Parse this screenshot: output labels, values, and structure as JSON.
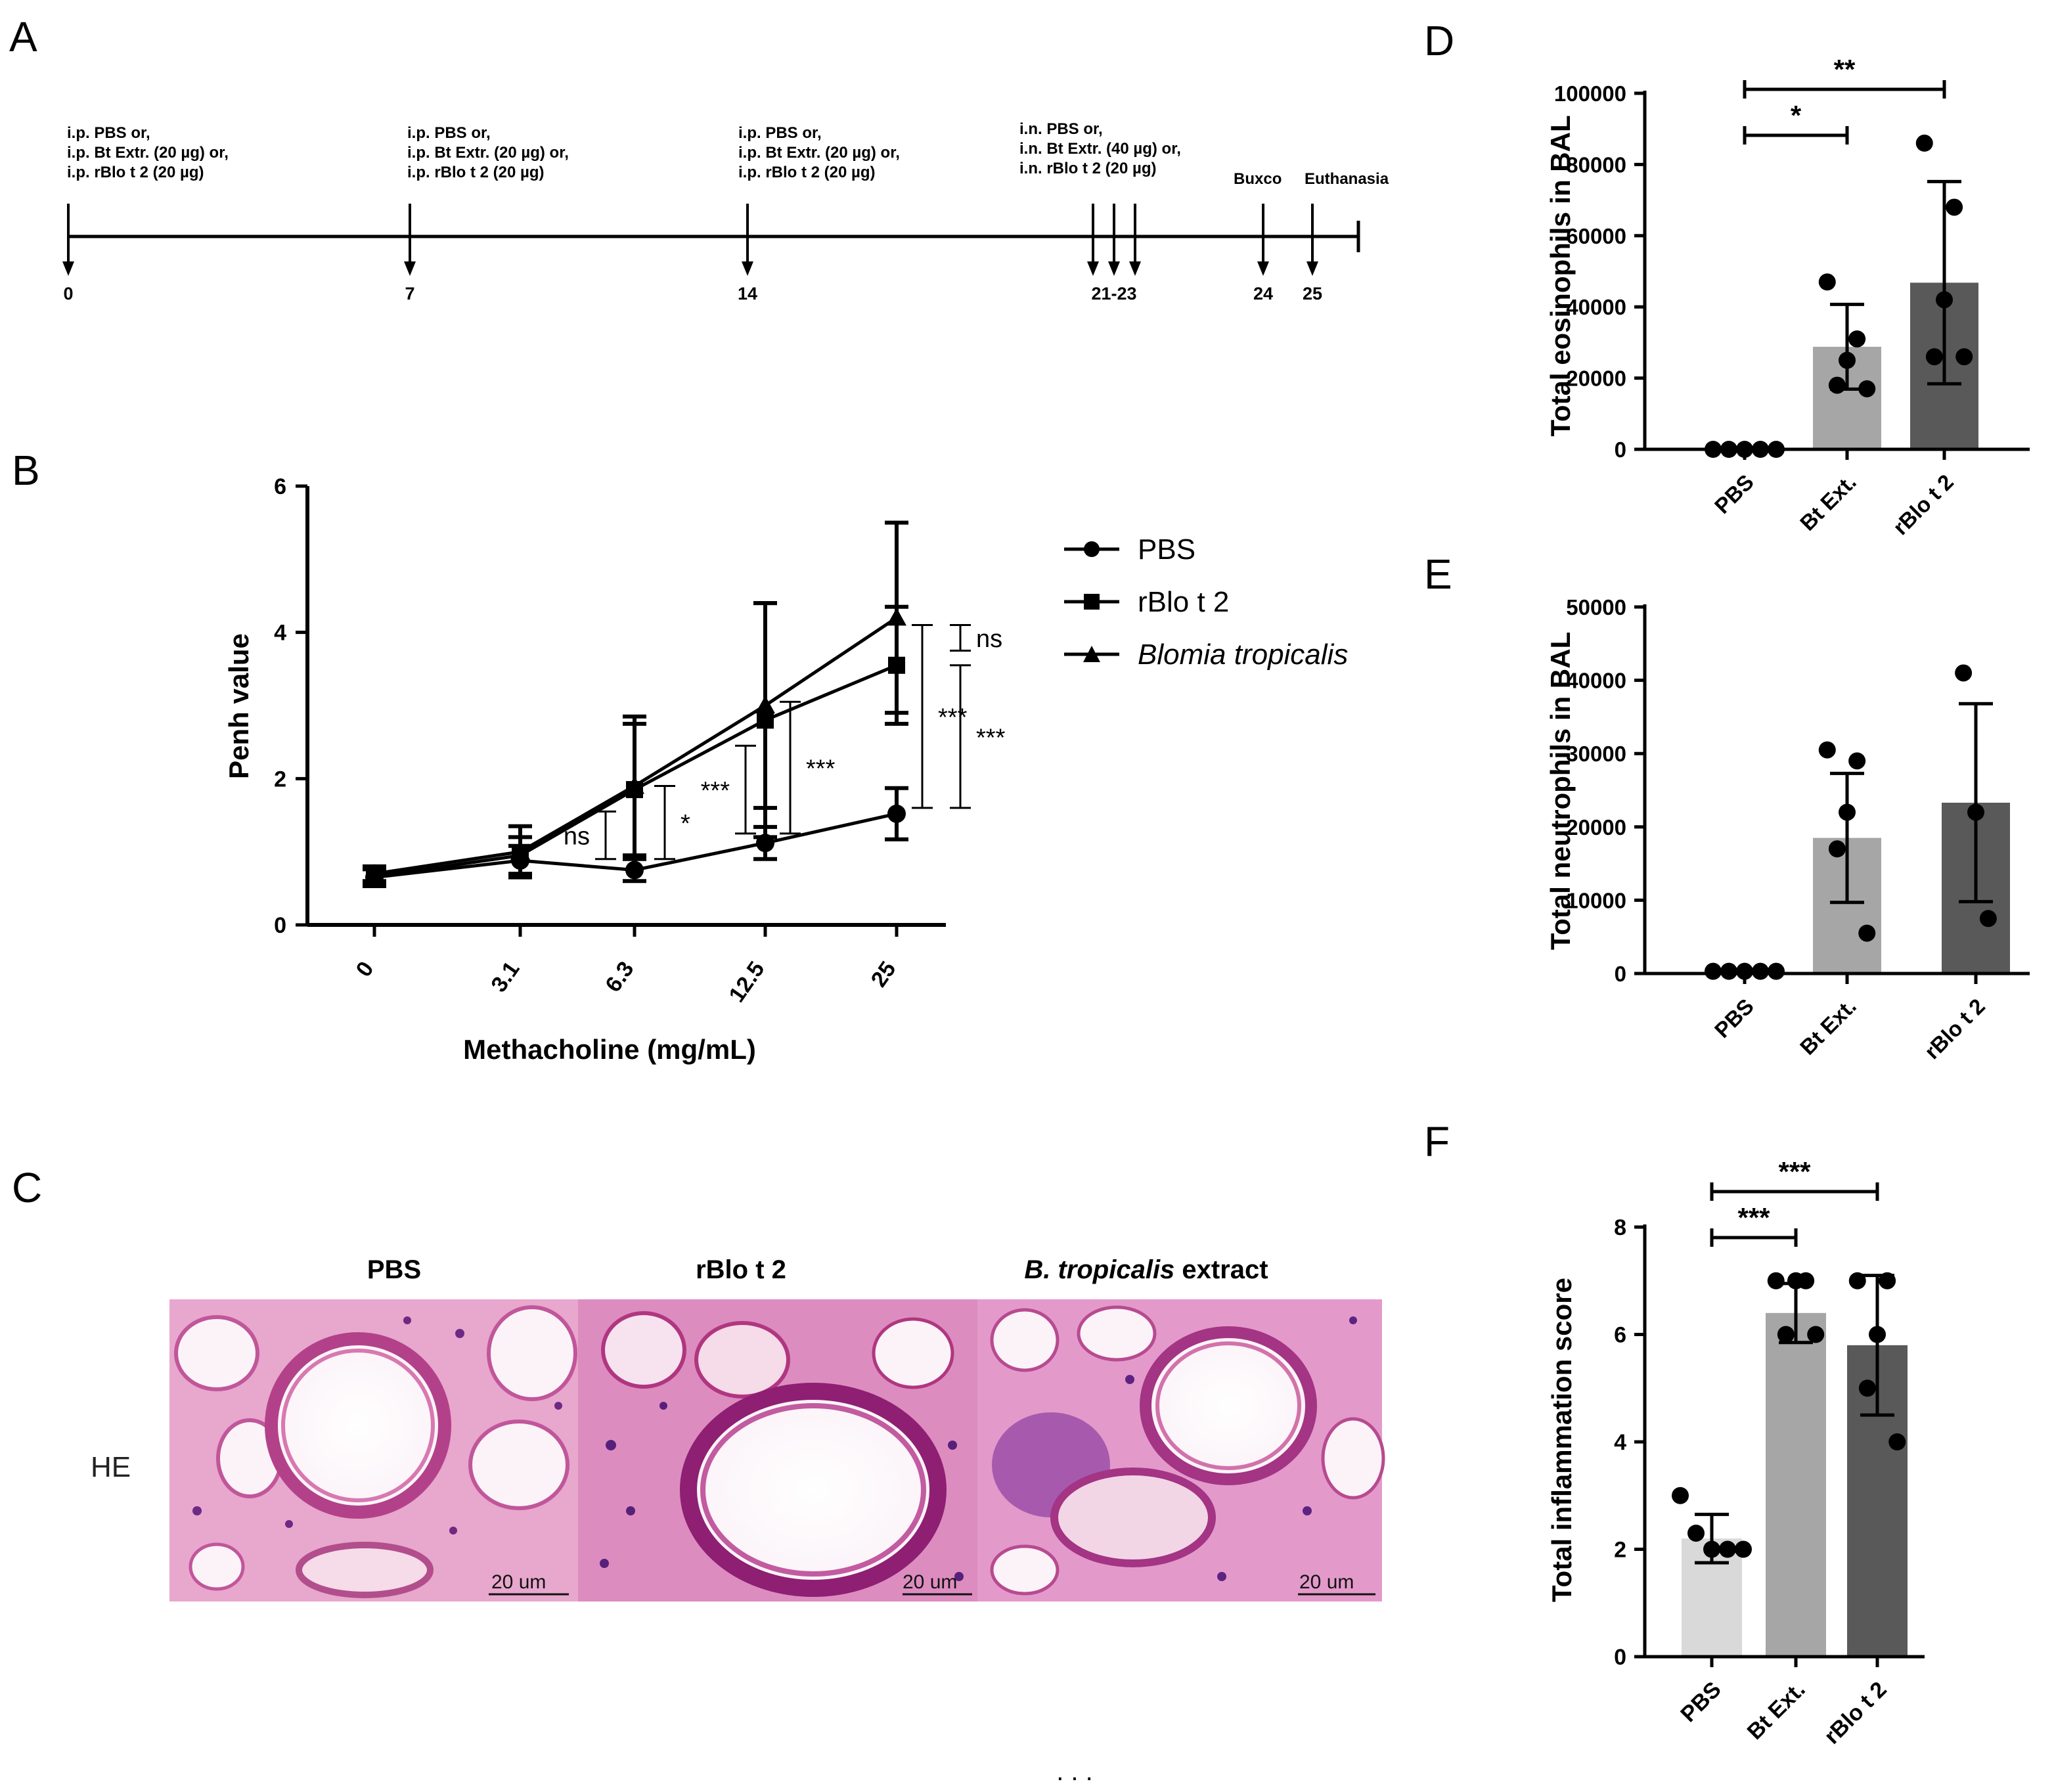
{
  "panel_letters": {
    "a": "A",
    "b": "B",
    "c": "C",
    "d": "D",
    "e": "E",
    "f": "F"
  },
  "colors": {
    "black": "#000000",
    "bar_pbs": "#d9d9d9",
    "bar_bt": "#a6a6a6",
    "bar_rblo": "#595959",
    "histo_pink": "#e6a3c9",
    "histo_purple": "#8a3a8e"
  },
  "timeline": {
    "events": [
      {
        "lines": [
          "i.p. PBS or,",
          "i.p. Bt Extr. (20 µg) or,",
          "i.p. rBlo t 2 (20 µg)"
        ]
      },
      {
        "lines": [
          "i.p. PBS or,",
          "i.p. Bt Extr. (20 µg) or,",
          "i.p. rBlo t 2 (20 µg)"
        ]
      },
      {
        "lines": [
          "i.p. PBS or,",
          "i.p. Bt Extr. (20 µg) or,",
          "i.p. rBlo t 2 (20 µg)"
        ]
      },
      {
        "lines": [
          "i.n. PBS or,",
          "i.n. Bt Extr. (40 µg) or,",
          "i.n. rBlo t 2 (20 µg)"
        ]
      },
      {
        "lines": [
          "Buxco"
        ]
      },
      {
        "lines": [
          "Euthanasia"
        ]
      }
    ],
    "days": [
      "0",
      "7",
      "14",
      "21-23",
      "24",
      "25"
    ]
  },
  "chart_data": [
    {
      "panel": "B",
      "type": "line",
      "xlabel": "Methacholine (mg/mL)",
      "ylabel": "Penh value",
      "categories": [
        "0",
        "3.1",
        "6.3",
        "12.5",
        "25"
      ],
      "ylim": [
        0,
        6
      ],
      "yticks": [
        "0",
        "2",
        "4",
        "6"
      ],
      "series": [
        {
          "name": "PBS",
          "marker": "circle",
          "values": [
            0.65,
            0.88,
            0.75,
            1.12,
            1.52
          ],
          "err": [
            0.12,
            0.2,
            0.15,
            0.22,
            0.35
          ]
        },
        {
          "name": "rBlo t 2",
          "marker": "square",
          "values": [
            0.66,
            0.95,
            1.85,
            2.8,
            3.55
          ],
          "err": [
            0.1,
            0.25,
            0.9,
            1.6,
            0.8
          ]
        },
        {
          "name": "Blomia tropicalis",
          "marker": "triangle",
          "values": [
            0.7,
            1.0,
            1.9,
            3.0,
            4.2
          ],
          "err": [
            0.1,
            0.35,
            0.95,
            1.4,
            1.3
          ]
        }
      ],
      "annotations": [
        {
          "text": "ns",
          "between": [
            "PBS",
            "rBlo t 2"
          ],
          "at": "6.3"
        },
        {
          "text": "*",
          "between": [
            "PBS",
            "Blomia tropicalis"
          ],
          "at": "6.3"
        },
        {
          "text": "***",
          "between": [
            "PBS",
            "rBlo t 2"
          ],
          "at": "12.5"
        },
        {
          "text": "***",
          "between": [
            "PBS",
            "Blomia tropicalis"
          ],
          "at": "12.5"
        },
        {
          "text": "ns",
          "between": [
            "rBlo t 2",
            "Blomia tropicalis"
          ],
          "at": "25"
        },
        {
          "text": "***",
          "between": [
            "PBS",
            "rBlo t 2"
          ],
          "at": "25"
        },
        {
          "text": "***",
          "between": [
            "PBS",
            "Blomia tropicalis"
          ],
          "at": "25"
        }
      ]
    },
    {
      "panel": "D",
      "type": "bar",
      "ylabel": "Total eosinophils in BAL",
      "categories": [
        "PBS",
        "Bt Ext.",
        "rBlo t 2"
      ],
      "values": [
        0,
        28800,
        46800
      ],
      "sd": [
        0,
        11900,
        28400
      ],
      "points": [
        [
          0,
          0,
          0,
          0,
          0
        ],
        [
          47000,
          31000,
          25000,
          18000,
          17000
        ],
        [
          86000,
          68000,
          42000,
          26000,
          26000
        ]
      ],
      "ylim": [
        0,
        100000
      ],
      "yticks": [
        "0",
        "20000",
        "40000",
        "60000",
        "80000",
        "100000"
      ],
      "significance": [
        {
          "from": "PBS",
          "to": "Bt Ext.",
          "text": "*"
        },
        {
          "from": "PBS",
          "to": "rBlo t 2",
          "text": "**"
        }
      ]
    },
    {
      "panel": "E",
      "type": "bar",
      "ylabel": "Total neutrophils in BAL",
      "categories": [
        "PBS",
        "Bt Ext.",
        " rBlo t 2"
      ],
      "values": [
        0,
        18500,
        23300
      ],
      "sd": [
        0,
        8800,
        13500
      ],
      "points": [
        [
          300,
          300,
          300,
          300,
          300
        ],
        [
          30500,
          29000,
          22000,
          17000,
          5500
        ],
        [
          41000,
          22000,
          7500
        ]
      ],
      "ylim": [
        0,
        50000
      ],
      "yticks": [
        "0",
        "10000",
        "20000",
        "30000",
        "40000",
        "50000"
      ],
      "significance": []
    },
    {
      "panel": "F",
      "type": "bar",
      "ylabel": "Total inflammation score",
      "categories": [
        "PBS",
        "Bt Ext.",
        "rBlo t 2"
      ],
      "values": [
        2.2,
        6.4,
        5.8
      ],
      "sd": [
        0.45,
        0.55,
        1.3
      ],
      "points": [
        [
          3,
          2.3,
          2,
          2,
          2
        ],
        [
          7,
          7,
          7,
          6,
          6
        ],
        [
          7,
          7,
          6,
          5,
          4
        ]
      ],
      "ylim": [
        0,
        8
      ],
      "yticks": [
        "0",
        "2",
        "4",
        "6",
        "8"
      ],
      "significance": [
        {
          "from": "PBS",
          "to": "Bt Ext.",
          "text": "***"
        },
        {
          "from": "PBS",
          "to": "rBlo t 2",
          "text": "***"
        }
      ]
    }
  ],
  "histology": {
    "titles": [
      "PBS",
      "rBlo t 2"
    ],
    "title3_italic": "B. tropicalis",
    "title3_rest": " extract",
    "stain_label": "HE",
    "scale_labels": [
      "20 um",
      "20 um",
      "20 um"
    ]
  },
  "footer_dots": ". . ."
}
